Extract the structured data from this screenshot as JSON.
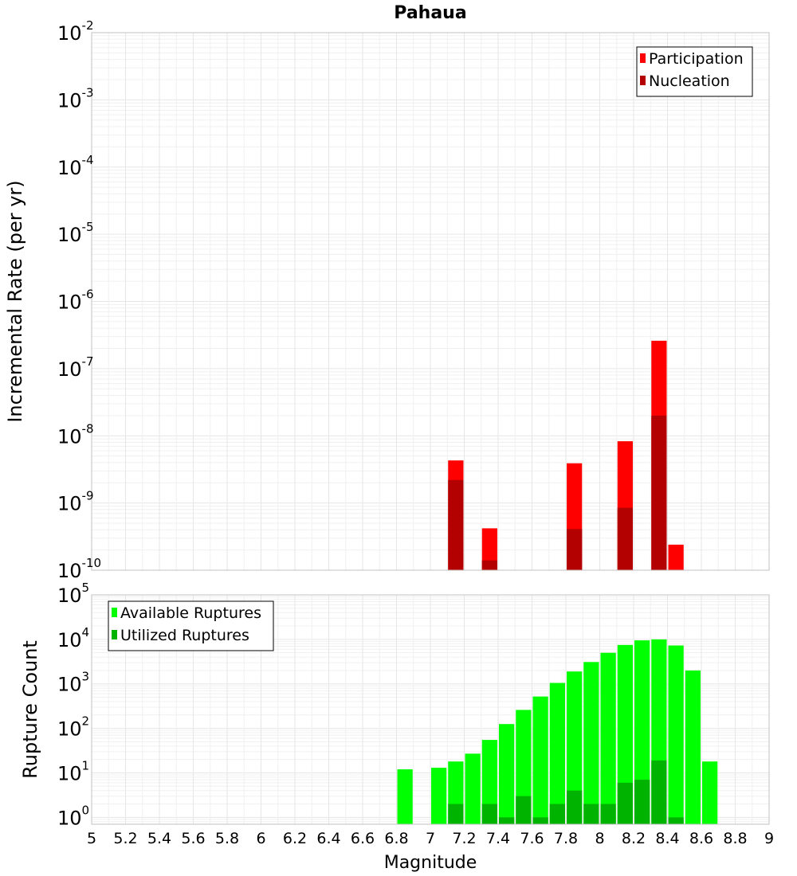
{
  "chart_data": [
    {
      "type": "bar",
      "title": "Pahaua",
      "xlabel": "",
      "ylabel": "Incremental Rate (per yr)",
      "yscale": "log",
      "ylim": [
        1e-10,
        0.01
      ],
      "xlim": [
        5,
        9
      ],
      "grid": true,
      "legend_position": "top-right",
      "bar_width": 0.1,
      "y_tick_exponents": [
        -10,
        -9,
        -8,
        -7,
        -6,
        -5,
        -4,
        -3,
        -2
      ],
      "series": [
        {
          "name": "Participation",
          "color": "#ff0000",
          "points": [
            {
              "x": 7.15,
              "y": 4.3e-09
            },
            {
              "x": 7.35,
              "y": 4.2e-10
            },
            {
              "x": 7.85,
              "y": 3.9e-09
            },
            {
              "x": 8.15,
              "y": 8.3e-09
            },
            {
              "x": 8.35,
              "y": 2.6e-07
            },
            {
              "x": 8.45,
              "y": 2.4e-10
            }
          ]
        },
        {
          "name": "Nucleation",
          "color": "#b30000",
          "points": [
            {
              "x": 7.15,
              "y": 2.2e-09
            },
            {
              "x": 7.35,
              "y": 1.4e-10
            },
            {
              "x": 7.85,
              "y": 4.1e-10
            },
            {
              "x": 8.15,
              "y": 8.5e-10
            },
            {
              "x": 8.35,
              "y": 2e-08
            }
          ]
        }
      ]
    },
    {
      "type": "bar",
      "title": "",
      "xlabel": "Magnitude",
      "ylabel": "Rupture Count",
      "yscale": "log",
      "ylim": [
        0.7,
        100000
      ],
      "xlim": [
        5,
        9
      ],
      "grid": true,
      "legend_position": "top-left",
      "bar_width": 0.1,
      "y_tick_exponents": [
        0,
        1,
        2,
        3,
        4,
        5
      ],
      "x_ticks": [
        "5",
        "5.2",
        "5.4",
        "5.6",
        "5.8",
        "6",
        "6.2",
        "6.4",
        "6.6",
        "6.8",
        "7",
        "7.2",
        "7.4",
        "7.6",
        "7.8",
        "8",
        "8.2",
        "8.4",
        "8.6",
        "8.8",
        "9"
      ],
      "series": [
        {
          "name": "Available Ruptures",
          "color": "#00ff00",
          "points": [
            {
              "x": 6.85,
              "y": 12
            },
            {
              "x": 7.05,
              "y": 13
            },
            {
              "x": 7.15,
              "y": 18
            },
            {
              "x": 7.25,
              "y": 27
            },
            {
              "x": 7.35,
              "y": 55
            },
            {
              "x": 7.45,
              "y": 125
            },
            {
              "x": 7.55,
              "y": 260
            },
            {
              "x": 7.65,
              "y": 520
            },
            {
              "x": 7.75,
              "y": 1050
            },
            {
              "x": 7.85,
              "y": 1900
            },
            {
              "x": 7.95,
              "y": 3100
            },
            {
              "x": 8.05,
              "y": 5000
            },
            {
              "x": 8.15,
              "y": 7500
            },
            {
              "x": 8.25,
              "y": 9500
            },
            {
              "x": 8.35,
              "y": 10000
            },
            {
              "x": 8.45,
              "y": 7300
            },
            {
              "x": 8.55,
              "y": 2000
            },
            {
              "x": 8.65,
              "y": 18
            }
          ]
        },
        {
          "name": "Utilized Ruptures",
          "color": "#00b300",
          "points": [
            {
              "x": 7.15,
              "y": 2
            },
            {
              "x": 7.35,
              "y": 2
            },
            {
              "x": 7.45,
              "y": 1
            },
            {
              "x": 7.55,
              "y": 3
            },
            {
              "x": 7.65,
              "y": 1
            },
            {
              "x": 7.75,
              "y": 2
            },
            {
              "x": 7.85,
              "y": 4
            },
            {
              "x": 7.95,
              "y": 2
            },
            {
              "x": 8.05,
              "y": 2
            },
            {
              "x": 8.15,
              "y": 6
            },
            {
              "x": 8.25,
              "y": 7
            },
            {
              "x": 8.35,
              "y": 19
            },
            {
              "x": 8.45,
              "y": 1
            }
          ]
        }
      ]
    }
  ]
}
